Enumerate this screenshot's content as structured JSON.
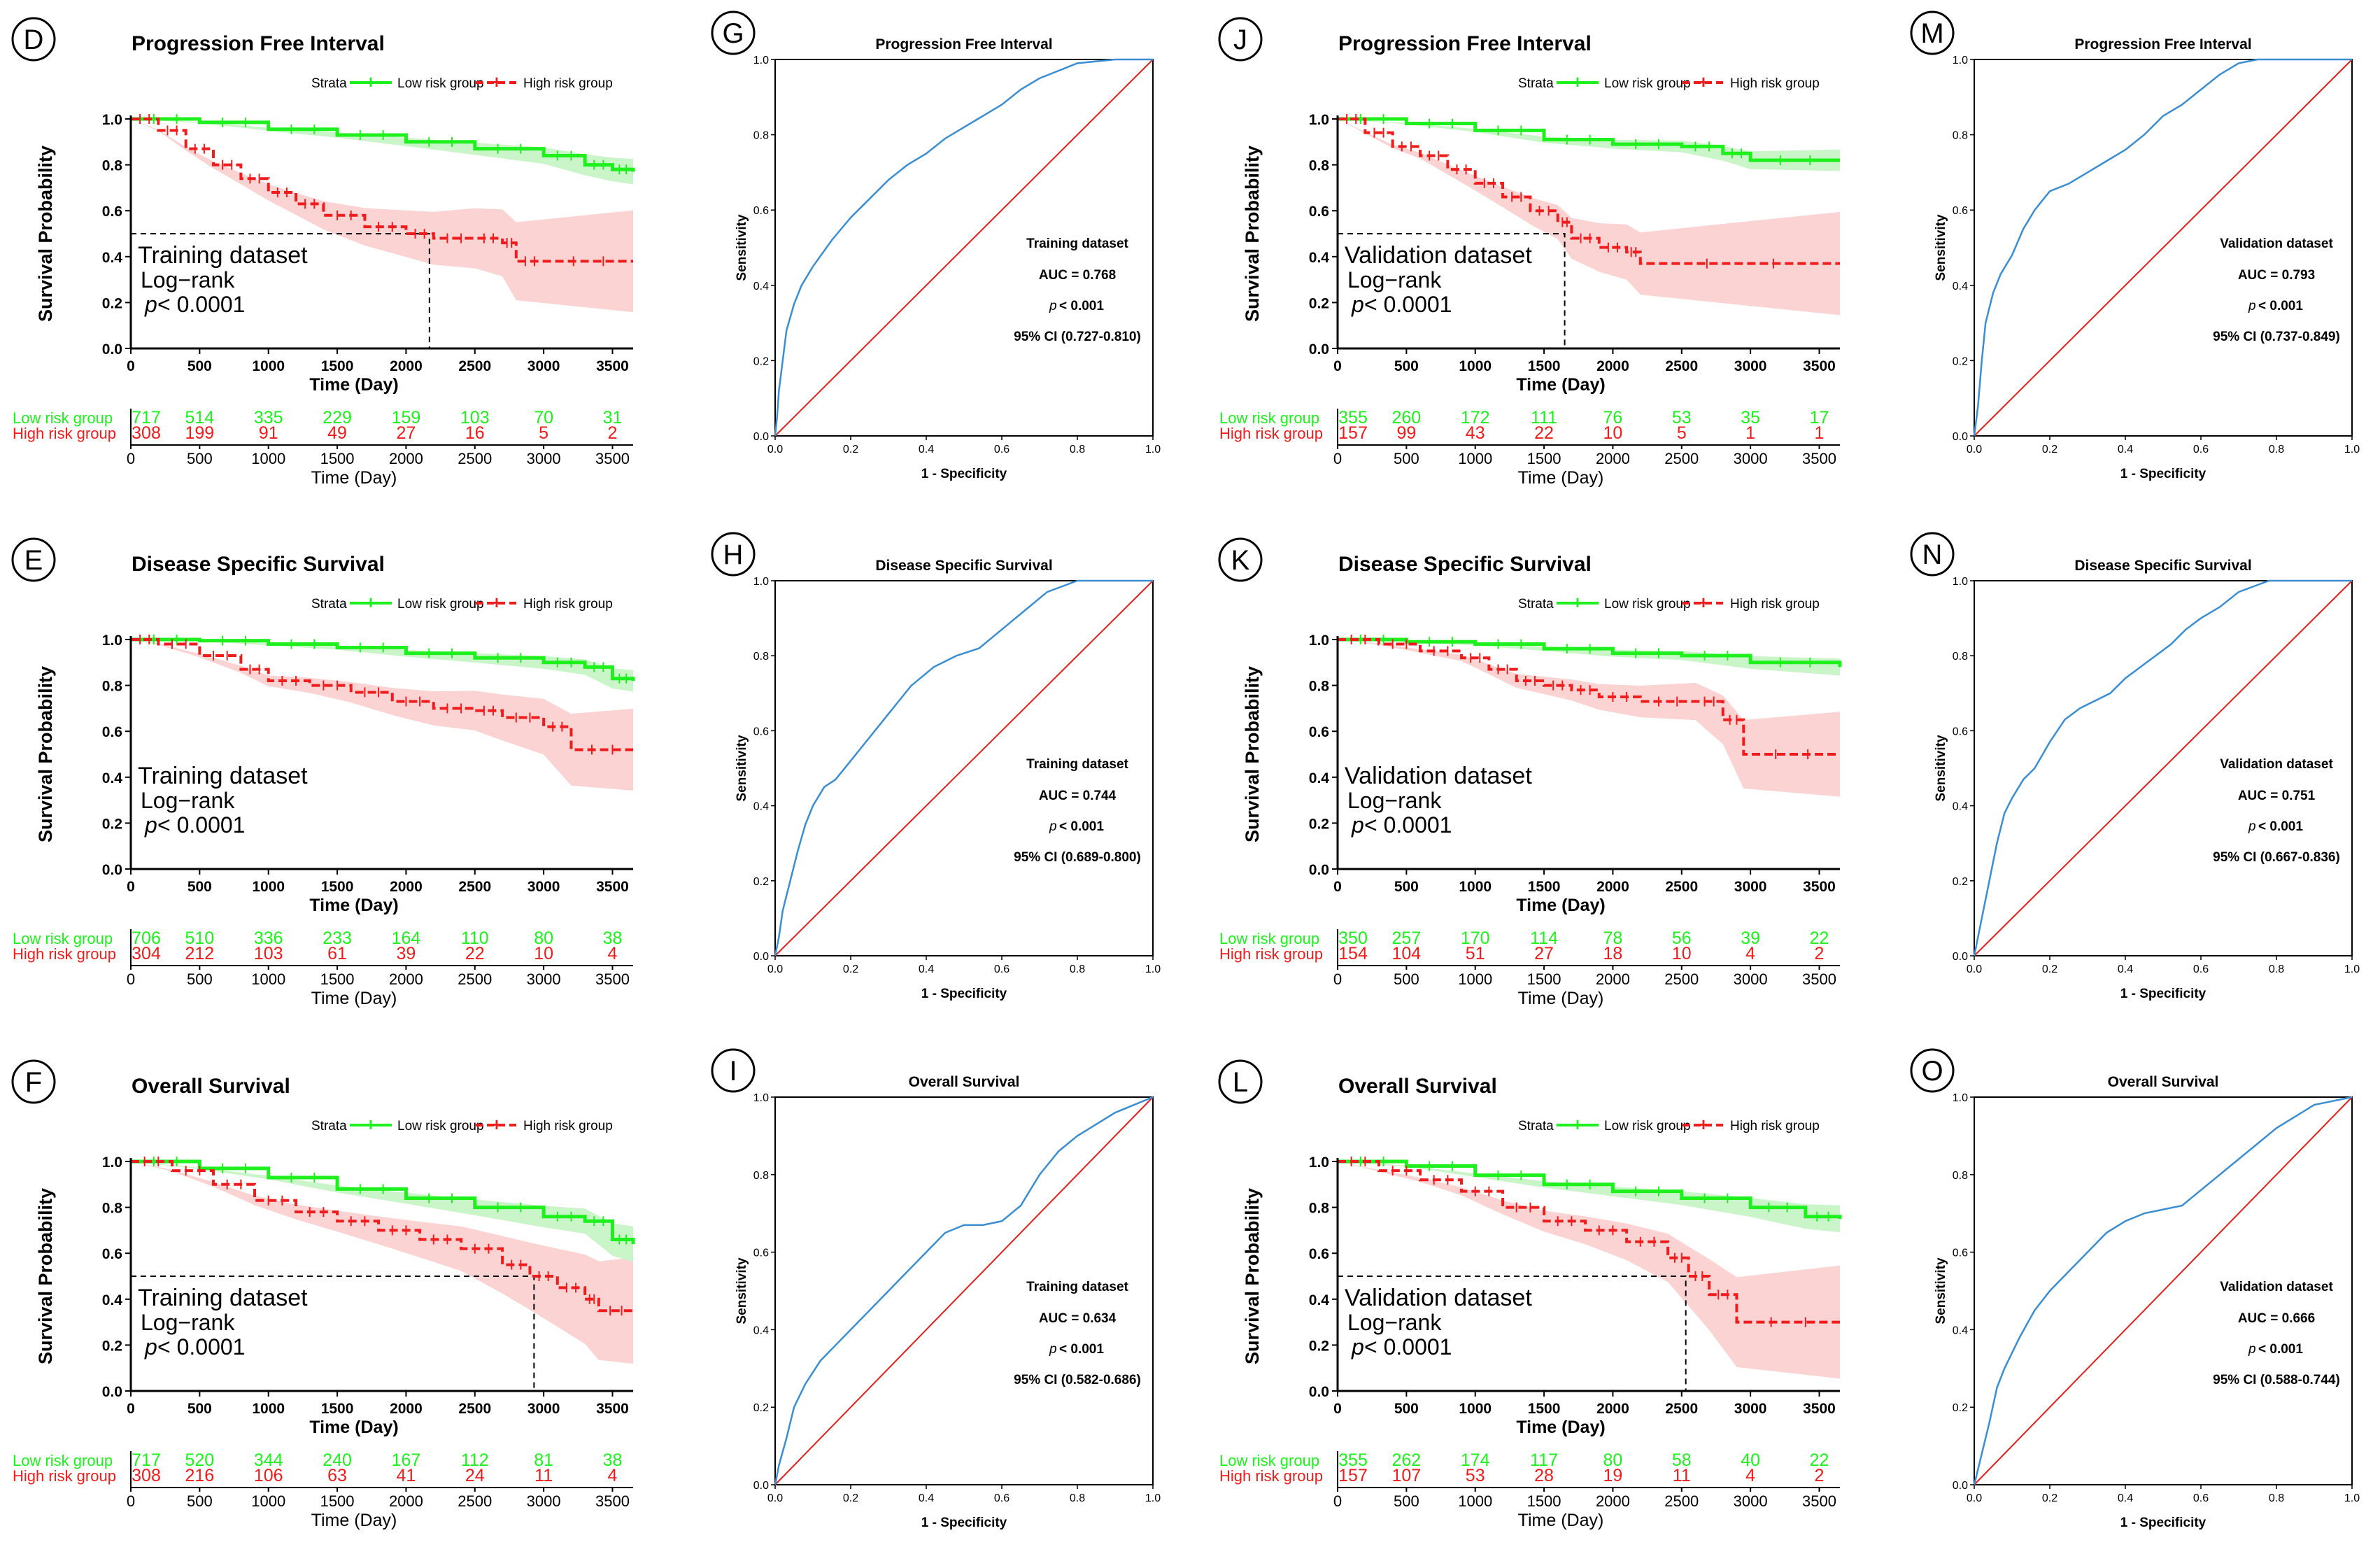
{
  "colors": {
    "low": "#1ef01e",
    "high": "#ee1c1c",
    "low_band": "#c9f5c9",
    "high_band": "#fbd3d3",
    "roc": "#3b8ed0",
    "diag": "#e0201c"
  },
  "common": {
    "ylabel_km": "Survival Probability",
    "xlabel_km": "Time (Day)",
    "legend_title": "Strata",
    "legend_low": "Low risk group",
    "legend_high": "High risk group",
    "risk_low_label": "Low risk group",
    "risk_high_label": "High risk group",
    "logrank": "Log−rank",
    "p_prefix": "p",
    "p_suffix": " < 0.0001",
    "roc_xlabel": "1 - Specificity",
    "roc_ylabel": "Sensitivity",
    "p_roc": " < 0.001",
    "km_xticks": [
      "0",
      "500",
      "1000",
      "1500",
      "2000",
      "2500",
      "3000",
      "3500"
    ],
    "km_yticks": [
      "0.0",
      "0.2",
      "0.4",
      "0.6",
      "0.8",
      "1.0"
    ],
    "roc_ticks": [
      "0.0",
      "0.2",
      "0.4",
      "0.6",
      "0.8",
      "1.0"
    ]
  },
  "chart_data": [
    {
      "type": "line",
      "panel": "D",
      "title": "Progression Free Interval",
      "dataset": "Training dataset",
      "xlabel": "Time (Day)",
      "ylabel": "Survival Probability",
      "xlim": [
        0,
        3650
      ],
      "ylim": [
        0,
        1
      ],
      "median_high": 2170,
      "series": [
        {
          "name": "Low risk group",
          "x": [
            0,
            500,
            1000,
            1500,
            2000,
            2500,
            3000,
            3300,
            3500,
            3650
          ],
          "values": [
            1.0,
            0.985,
            0.955,
            0.93,
            0.9,
            0.87,
            0.84,
            0.8,
            0.78,
            0.77
          ]
        },
        {
          "name": "High risk group",
          "x": [
            0,
            200,
            400,
            600,
            800,
            1000,
            1200,
            1400,
            1700,
            2000,
            2200,
            2500,
            2700,
            2800,
            3000,
            3650
          ],
          "values": [
            1.0,
            0.95,
            0.87,
            0.8,
            0.74,
            0.68,
            0.63,
            0.58,
            0.53,
            0.5,
            0.48,
            0.48,
            0.46,
            0.38,
            0.38,
            0.38
          ]
        }
      ],
      "risk_table": {
        "low": [
          "717",
          "514",
          "335",
          "229",
          "159",
          "103",
          "70",
          "31"
        ],
        "high": [
          "308",
          "199",
          "91",
          "49",
          "27",
          "16",
          "5",
          "2"
        ]
      }
    },
    {
      "type": "line",
      "panel": "E",
      "title": "Disease Specific Survival",
      "dataset": "Training dataset",
      "xlabel": "Time (Day)",
      "ylabel": "Survival Probability",
      "xlim": [
        0,
        3650
      ],
      "ylim": [
        0,
        1
      ],
      "median_high": null,
      "series": [
        {
          "name": "Low risk group",
          "x": [
            0,
            500,
            1000,
            1500,
            2000,
            2500,
            3000,
            3300,
            3500,
            3650
          ],
          "values": [
            1.0,
            0.995,
            0.98,
            0.965,
            0.94,
            0.92,
            0.9,
            0.88,
            0.83,
            0.82
          ]
        },
        {
          "name": "High risk group",
          "x": [
            0,
            200,
            500,
            800,
            1000,
            1300,
            1600,
            1900,
            2200,
            2500,
            2700,
            3000,
            3200,
            3650
          ],
          "values": [
            1.0,
            0.98,
            0.93,
            0.87,
            0.82,
            0.8,
            0.77,
            0.73,
            0.7,
            0.69,
            0.66,
            0.62,
            0.52,
            0.52
          ]
        }
      ],
      "risk_table": {
        "low": [
          "706",
          "510",
          "336",
          "233",
          "164",
          "110",
          "80",
          "38"
        ],
        "high": [
          "304",
          "212",
          "103",
          "61",
          "39",
          "22",
          "10",
          "4"
        ]
      }
    },
    {
      "type": "line",
      "panel": "F",
      "title": "Overall Survival",
      "dataset": "Training dataset",
      "xlabel": "Time (Day)",
      "ylabel": "Survival Probability",
      "xlim": [
        0,
        3650
      ],
      "ylim": [
        0,
        1
      ],
      "median_high": 2930,
      "series": [
        {
          "name": "Low risk group",
          "x": [
            0,
            500,
            1000,
            1500,
            2000,
            2500,
            3000,
            3300,
            3500,
            3650
          ],
          "values": [
            1.0,
            0.97,
            0.93,
            0.88,
            0.84,
            0.8,
            0.76,
            0.74,
            0.66,
            0.64
          ]
        },
        {
          "name": "High risk group",
          "x": [
            0,
            300,
            600,
            900,
            1200,
            1500,
            1800,
            2100,
            2400,
            2700,
            2900,
            3100,
            3300,
            3400,
            3650
          ],
          "values": [
            1.0,
            0.96,
            0.9,
            0.83,
            0.78,
            0.74,
            0.7,
            0.66,
            0.62,
            0.55,
            0.5,
            0.45,
            0.4,
            0.35,
            0.35
          ]
        }
      ],
      "risk_table": {
        "low": [
          "717",
          "520",
          "344",
          "240",
          "167",
          "112",
          "81",
          "38"
        ],
        "high": [
          "308",
          "216",
          "106",
          "63",
          "41",
          "24",
          "11",
          "4"
        ]
      }
    },
    {
      "type": "line",
      "panel": "J",
      "title": "Progression Free  Interval",
      "dataset": "Validation dataset",
      "xlabel": "Time (Day)",
      "ylabel": "Survival Probability",
      "xlim": [
        0,
        3650
      ],
      "ylim": [
        0,
        1
      ],
      "median_high": 1650,
      "series": [
        {
          "name": "Low risk group",
          "x": [
            0,
            500,
            1000,
            1500,
            2000,
            2500,
            2800,
            3000,
            3650
          ],
          "values": [
            1.0,
            0.98,
            0.95,
            0.91,
            0.89,
            0.88,
            0.85,
            0.82,
            0.82
          ]
        },
        {
          "name": "High risk group",
          "x": [
            0,
            200,
            400,
            600,
            800,
            1000,
            1200,
            1400,
            1600,
            1700,
            1900,
            2100,
            2200,
            3650
          ],
          "values": [
            1.0,
            0.94,
            0.88,
            0.84,
            0.78,
            0.72,
            0.66,
            0.6,
            0.55,
            0.48,
            0.44,
            0.42,
            0.37,
            0.37
          ]
        }
      ],
      "risk_table": {
        "low": [
          "355",
          "260",
          "172",
          "111",
          "76",
          "53",
          "35",
          "17"
        ],
        "high": [
          "157",
          "99",
          "43",
          "22",
          "10",
          "5",
          "1",
          "1"
        ]
      }
    },
    {
      "type": "line",
      "panel": "K",
      "title": "Disease Specific Survival",
      "dataset": "Validation dataset",
      "xlabel": "Time (Day)",
      "ylabel": "Survival Probability",
      "xlim": [
        0,
        3650
      ],
      "ylim": [
        0,
        1
      ],
      "median_high": null,
      "series": [
        {
          "name": "Low risk group",
          "x": [
            0,
            500,
            1000,
            1500,
            2000,
            2500,
            3000,
            3650
          ],
          "values": [
            1.0,
            0.99,
            0.98,
            0.96,
            0.94,
            0.93,
            0.9,
            0.88
          ]
        },
        {
          "name": "High risk group",
          "x": [
            0,
            300,
            600,
            900,
            1100,
            1300,
            1500,
            1700,
            1900,
            2200,
            2600,
            2800,
            2950,
            3650
          ],
          "values": [
            1.0,
            0.98,
            0.95,
            0.92,
            0.87,
            0.82,
            0.8,
            0.78,
            0.75,
            0.73,
            0.73,
            0.65,
            0.5,
            0.5
          ]
        }
      ],
      "risk_table": {
        "low": [
          "350",
          "257",
          "170",
          "114",
          "78",
          "56",
          "39",
          "22"
        ],
        "high": [
          "154",
          "104",
          "51",
          "27",
          "18",
          "10",
          "4",
          "2"
        ]
      }
    },
    {
      "type": "line",
      "panel": "L",
      "title": "Overall Survival",
      "dataset": "Validation dataset",
      "xlabel": "Time (Day)",
      "ylabel": "Survival Probability",
      "xlim": [
        0,
        3650
      ],
      "ylim": [
        0,
        1
      ],
      "median_high": 2530,
      "series": [
        {
          "name": "Low risk group",
          "x": [
            0,
            500,
            1000,
            1500,
            2000,
            2500,
            3000,
            3400,
            3650
          ],
          "values": [
            1.0,
            0.98,
            0.94,
            0.9,
            0.87,
            0.84,
            0.8,
            0.76,
            0.75
          ]
        },
        {
          "name": "High risk group",
          "x": [
            0,
            300,
            600,
            900,
            1200,
            1500,
            1800,
            2100,
            2400,
            2550,
            2700,
            2900,
            3650
          ],
          "values": [
            1.0,
            0.96,
            0.92,
            0.87,
            0.8,
            0.74,
            0.7,
            0.65,
            0.58,
            0.5,
            0.42,
            0.3,
            0.3
          ]
        }
      ],
      "risk_table": {
        "low": [
          "355",
          "262",
          "174",
          "117",
          "80",
          "58",
          "40",
          "22"
        ],
        "high": [
          "157",
          "107",
          "53",
          "28",
          "19",
          "11",
          "4",
          "2"
        ]
      }
    },
    {
      "type": "line",
      "panel": "G",
      "title": "Progression Free  Interval",
      "dataset": "Training dataset",
      "xlabel": "1 - Specificity",
      "ylabel": "Sensitivity",
      "xlim": [
        0,
        1
      ],
      "ylim": [
        0,
        1
      ],
      "auc": "0.768",
      "ci": "(0.727-0.810)",
      "series": [
        {
          "name": "ROC",
          "x": [
            0,
            0.005,
            0.01,
            0.02,
            0.03,
            0.05,
            0.07,
            0.1,
            0.15,
            0.2,
            0.25,
            0.3,
            0.35,
            0.4,
            0.45,
            0.5,
            0.55,
            0.6,
            0.65,
            0.7,
            0.75,
            0.8,
            0.9,
            1.0
          ],
          "values": [
            0,
            0.05,
            0.12,
            0.2,
            0.28,
            0.35,
            0.4,
            0.45,
            0.52,
            0.58,
            0.63,
            0.68,
            0.72,
            0.75,
            0.79,
            0.82,
            0.85,
            0.88,
            0.92,
            0.95,
            0.97,
            0.99,
            1.0,
            1.0
          ]
        }
      ]
    },
    {
      "type": "line",
      "panel": "H",
      "title": "Disease Specific Survival",
      "dataset": "Training dataset",
      "xlabel": "1 - Specificity",
      "ylabel": "Sensitivity",
      "xlim": [
        0,
        1
      ],
      "ylim": [
        0,
        1
      ],
      "auc": "0.744",
      "ci": "(0.689-0.800)",
      "series": [
        {
          "name": "ROC",
          "x": [
            0,
            0.01,
            0.02,
            0.04,
            0.06,
            0.08,
            0.1,
            0.13,
            0.16,
            0.2,
            0.24,
            0.28,
            0.32,
            0.36,
            0.42,
            0.48,
            0.54,
            0.6,
            0.66,
            0.72,
            0.8,
            1.0
          ],
          "values": [
            0,
            0.05,
            0.12,
            0.2,
            0.28,
            0.35,
            0.4,
            0.45,
            0.47,
            0.52,
            0.57,
            0.62,
            0.67,
            0.72,
            0.77,
            0.8,
            0.82,
            0.87,
            0.92,
            0.97,
            1.0,
            1.0
          ]
        }
      ]
    },
    {
      "type": "line",
      "panel": "I",
      "title": "Overall Survival",
      "dataset": "Training dataset",
      "xlabel": "1 - Specificity",
      "ylabel": "Sensitivity",
      "xlim": [
        0,
        1
      ],
      "ylim": [
        0,
        1
      ],
      "auc": "0.634",
      "ci": "(0.582-0.686)",
      "series": [
        {
          "name": "ROC",
          "x": [
            0,
            0.01,
            0.03,
            0.05,
            0.08,
            0.12,
            0.16,
            0.2,
            0.25,
            0.3,
            0.35,
            0.4,
            0.45,
            0.5,
            0.55,
            0.6,
            0.65,
            0.7,
            0.75,
            0.8,
            0.85,
            0.9,
            0.95,
            1.0
          ],
          "values": [
            0,
            0.05,
            0.12,
            0.2,
            0.26,
            0.32,
            0.36,
            0.4,
            0.45,
            0.5,
            0.55,
            0.6,
            0.65,
            0.67,
            0.67,
            0.68,
            0.72,
            0.8,
            0.86,
            0.9,
            0.93,
            0.96,
            0.98,
            1.0
          ]
        }
      ]
    },
    {
      "type": "line",
      "panel": "M",
      "title": "Progression Free  Interval",
      "dataset": "Validation dataset",
      "xlabel": "1 - Specificity",
      "ylabel": "Sensitivity",
      "xlim": [
        0,
        1
      ],
      "ylim": [
        0,
        1
      ],
      "auc": "0.793",
      "ci": "(0.737-0.849)",
      "series": [
        {
          "name": "ROC",
          "x": [
            0,
            0.01,
            0.02,
            0.03,
            0.05,
            0.07,
            0.1,
            0.13,
            0.16,
            0.2,
            0.25,
            0.3,
            0.35,
            0.4,
            0.45,
            0.5,
            0.55,
            0.6,
            0.65,
            0.7,
            0.75,
            1.0
          ],
          "values": [
            0,
            0.08,
            0.2,
            0.3,
            0.38,
            0.43,
            0.48,
            0.55,
            0.6,
            0.65,
            0.67,
            0.7,
            0.73,
            0.76,
            0.8,
            0.85,
            0.88,
            0.92,
            0.96,
            0.99,
            1.0,
            1.0
          ]
        }
      ]
    },
    {
      "type": "line",
      "panel": "N",
      "title": "Disease Specific Survival",
      "dataset": "Validation dataset",
      "xlabel": "1 - Specificity",
      "ylabel": "Sensitivity",
      "xlim": [
        0,
        1
      ],
      "ylim": [
        0,
        1
      ],
      "auc": "0.751",
      "ci": "(0.667-0.836)",
      "series": [
        {
          "name": "ROC",
          "x": [
            0,
            0.02,
            0.04,
            0.06,
            0.08,
            0.1,
            0.13,
            0.16,
            0.2,
            0.24,
            0.28,
            0.32,
            0.36,
            0.4,
            0.44,
            0.48,
            0.52,
            0.56,
            0.6,
            0.65,
            0.7,
            0.78,
            1.0
          ],
          "values": [
            0,
            0.1,
            0.2,
            0.3,
            0.38,
            0.42,
            0.47,
            0.5,
            0.57,
            0.63,
            0.66,
            0.68,
            0.7,
            0.74,
            0.77,
            0.8,
            0.83,
            0.87,
            0.9,
            0.93,
            0.97,
            1.0,
            1.0
          ]
        }
      ]
    },
    {
      "type": "line",
      "panel": "O",
      "title": "Overall Survival",
      "dataset": "Validation dataset",
      "xlabel": "1 - Specificity",
      "ylabel": "Sensitivity",
      "xlim": [
        0,
        1
      ],
      "ylim": [
        0,
        1
      ],
      "auc": "0.666",
      "ci": "(0.588-0.744)",
      "series": [
        {
          "name": "ROC",
          "x": [
            0,
            0.02,
            0.04,
            0.06,
            0.08,
            0.12,
            0.16,
            0.2,
            0.25,
            0.3,
            0.35,
            0.4,
            0.45,
            0.5,
            0.55,
            0.6,
            0.65,
            0.7,
            0.75,
            0.8,
            0.85,
            0.9,
            0.95,
            1.0
          ],
          "values": [
            0,
            0.08,
            0.16,
            0.25,
            0.3,
            0.38,
            0.45,
            0.5,
            0.55,
            0.6,
            0.65,
            0.68,
            0.7,
            0.71,
            0.72,
            0.76,
            0.8,
            0.84,
            0.88,
            0.92,
            0.95,
            0.98,
            0.99,
            1.0
          ]
        }
      ]
    }
  ]
}
